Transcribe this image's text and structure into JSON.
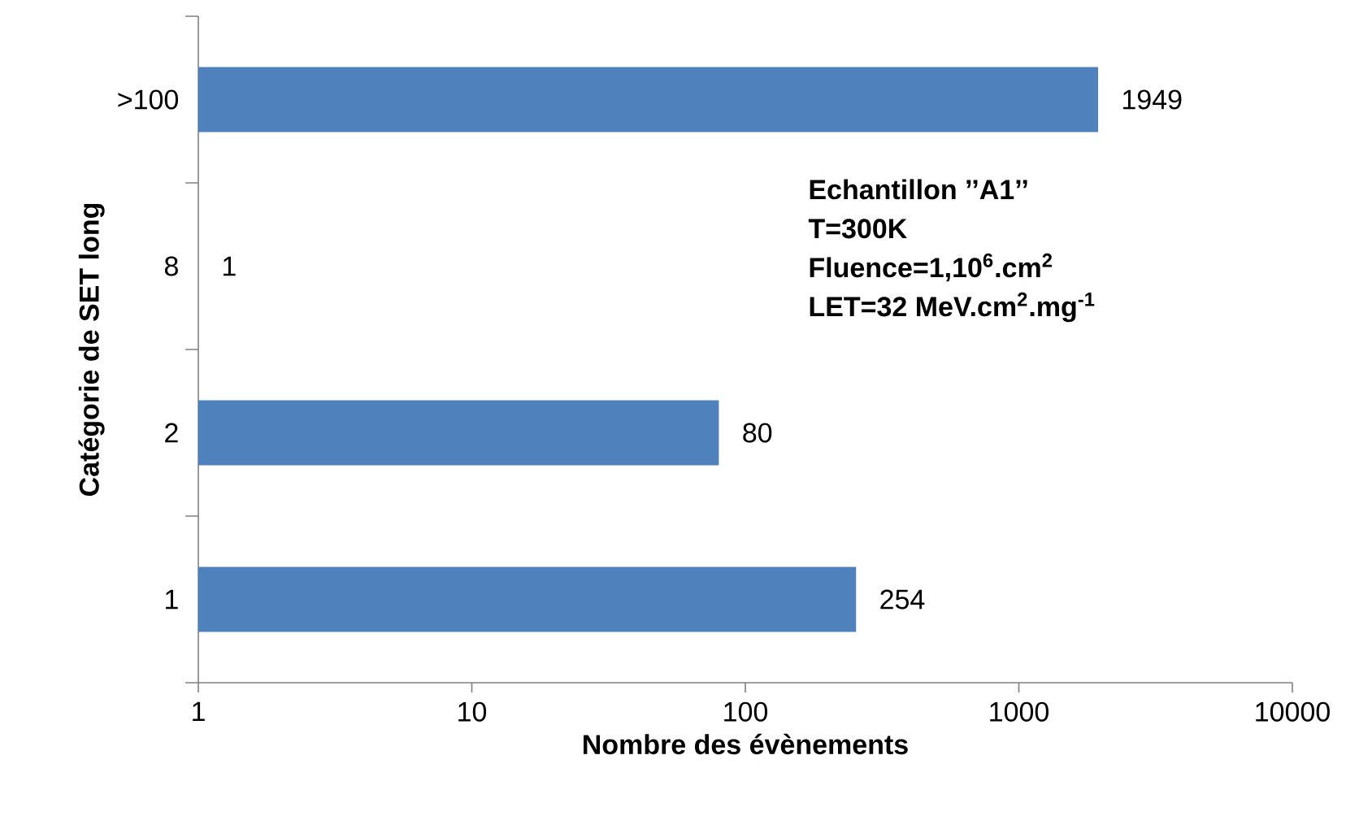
{
  "chart_data": {
    "type": "bar",
    "orientation": "horizontal",
    "log": "x",
    "categories": [
      ">100",
      "8",
      "2",
      "1"
    ],
    "values": [
      1949,
      1,
      80,
      254
    ],
    "color": "#4f81bd",
    "data_labels": true,
    "xlim": [
      1,
      10000
    ],
    "xticks": [
      1,
      10,
      100,
      1000,
      10000
    ],
    "xlabel": "Nombre des évènements",
    "ylabel": "Catégorie de SET long",
    "annotations": [
      "Echantillon ’’A1’’",
      "T=300K",
      "Fluence=1,10$^{6}$.cm$^{2}$",
      "LET=32 MeV.cm$^{2}$.mg$^{-1}$"
    ]
  }
}
